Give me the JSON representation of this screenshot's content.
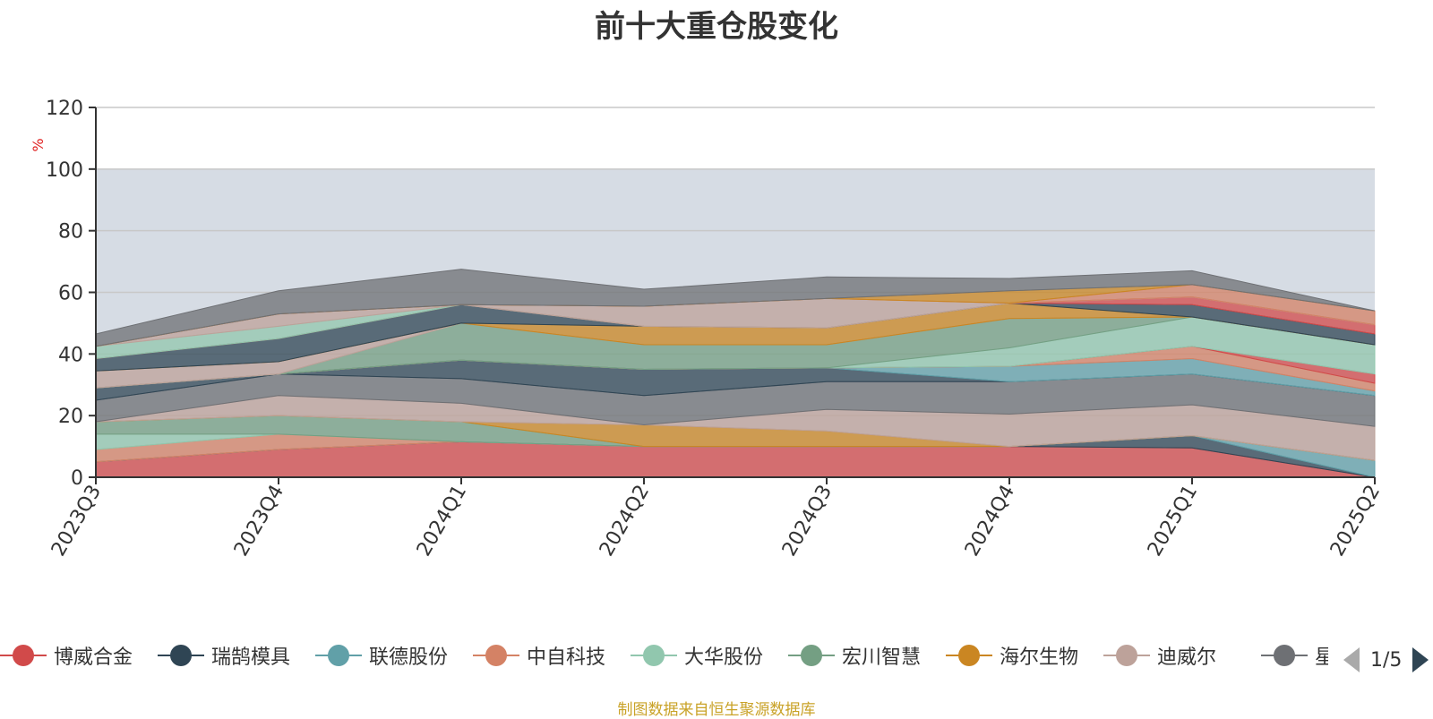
{
  "chart_data": {
    "type": "area",
    "title": "前十大重仓股变化",
    "ylabel": "%",
    "ylim": [
      0,
      120
    ],
    "yticks": [
      0,
      20,
      40,
      60,
      80,
      100,
      120
    ],
    "highlight_band": [
      0,
      100
    ],
    "grid": true,
    "stacked": true,
    "legend_position": "bottom",
    "categories": [
      "2023Q3",
      "2023Q4",
      "2024Q1",
      "2024Q2",
      "2024Q3",
      "2024Q4",
      "2025Q1",
      "2025Q2"
    ],
    "series": [
      {
        "name": "博威合金",
        "color": "#d14a4a",
        "values": [
          5,
          9,
          11.5,
          10,
          10,
          10,
          9.5,
          0
        ]
      },
      {
        "name": "瑞鹄模具",
        "color": "#2f4554",
        "values": [
          0,
          0,
          0,
          0,
          0,
          0,
          4,
          0
        ]
      },
      {
        "name": "联德股份",
        "color": "#61a0a8",
        "values": [
          0,
          0,
          0,
          0,
          0,
          0,
          0,
          5.5
        ]
      },
      {
        "name": "中自科技",
        "color": "#d48265",
        "values": [
          4,
          5,
          0,
          0,
          0,
          0,
          0,
          0
        ]
      },
      {
        "name": "大华股份",
        "color": "#91c7ae",
        "values": [
          5,
          0,
          0,
          0,
          0,
          0,
          0,
          0
        ]
      },
      {
        "name": "宏川智慧",
        "color": "#749f83",
        "values": [
          4,
          6,
          6.5,
          0,
          0,
          0,
          0,
          0
        ]
      },
      {
        "name": "海尔生物",
        "color": "#ca8622",
        "values": [
          0,
          0,
          0,
          7,
          5,
          0,
          0,
          0
        ]
      },
      {
        "name": "迪威尔",
        "color": "#bda29a",
        "values": [
          0,
          6.5,
          6,
          0,
          7,
          10.5,
          10,
          11
        ]
      },
      {
        "name": "星宇股份",
        "color": "#6e7074",
        "values": [
          7,
          7,
          8,
          9.5,
          9,
          10.5,
          10,
          10
        ]
      },
      {
        "name": "瑞鹄模具",
        "color": "#2f4554",
        "values": [
          4,
          0,
          6,
          8.5,
          4.5,
          0,
          0,
          0
        ]
      },
      {
        "name": "联德股份",
        "color": "#61a0a8",
        "values": [
          0,
          0,
          0,
          0,
          0,
          5,
          5,
          1.5
        ]
      },
      {
        "name": "中自科技",
        "color": "#d48265",
        "values": [
          0,
          0,
          0,
          0,
          0,
          0,
          4,
          2.5
        ]
      },
      {
        "name": "博威合金",
        "color": "#d14a4a",
        "values": [
          0,
          0,
          0,
          0,
          0,
          0,
          0,
          3
        ]
      },
      {
        "name": "大华股份",
        "color": "#91c7ae",
        "values": [
          0,
          0,
          0,
          0,
          0,
          6,
          9.5,
          9.5
        ]
      },
      {
        "name": "宏川智慧",
        "color": "#749f83",
        "values": [
          0,
          0,
          12,
          8,
          7.5,
          9.5,
          0,
          0
        ]
      },
      {
        "name": "迪威尔",
        "color": "#bda29a",
        "values": [
          5.5,
          4,
          0,
          0,
          0,
          0,
          0,
          0
        ]
      },
      {
        "name": "海尔生物",
        "color": "#ca8622",
        "values": [
          0,
          0,
          0,
          6,
          5.5,
          5,
          0,
          0
        ]
      },
      {
        "name": "瑞鹄模具",
        "color": "#2f4554",
        "values": [
          4,
          7.5,
          6,
          0,
          0,
          0,
          4,
          3.5
        ]
      },
      {
        "name": "博威合金",
        "color": "#d14a4a",
        "values": [
          0,
          0,
          0,
          0,
          0,
          0,
          2.5,
          3
        ]
      },
      {
        "name": "大华股份",
        "color": "#91c7ae",
        "values": [
          4,
          4,
          0,
          0,
          0,
          0,
          0,
          0
        ]
      },
      {
        "name": "迪威尔",
        "color": "#bda29a",
        "values": [
          0,
          4,
          0,
          6.5,
          9.5,
          0,
          0,
          0
        ]
      },
      {
        "name": "中自科技",
        "color": "#d48265",
        "values": [
          0,
          0,
          0,
          0,
          0,
          0,
          4,
          4.5
        ]
      },
      {
        "name": "海尔生物",
        "color": "#ca8622",
        "values": [
          0,
          0,
          0,
          0,
          0,
          4,
          0,
          0
        ]
      },
      {
        "name": "星宇股份",
        "color": "#6e7074",
        "values": [
          4,
          7.5,
          11.5,
          5.5,
          7,
          4,
          4.5,
          0
        ]
      }
    ]
  },
  "legend": {
    "items": [
      {
        "label": "博威合金",
        "color": "#d14a4a"
      },
      {
        "label": "瑞鹄模具",
        "color": "#2f4554"
      },
      {
        "label": "联德股份",
        "color": "#61a0a8"
      },
      {
        "label": "中自科技",
        "color": "#d48265"
      },
      {
        "label": "大华股份",
        "color": "#91c7ae"
      },
      {
        "label": "宏川智慧",
        "color": "#749f83"
      },
      {
        "label": "海尔生物",
        "color": "#ca8622"
      },
      {
        "label": "迪威尔",
        "color": "#bda29a"
      },
      {
        "label": "星宇股份",
        "color": "#6e7074"
      }
    ],
    "page_text": "1/5"
  },
  "footer": {
    "source": "制图数据来自恒生聚源数据库"
  }
}
